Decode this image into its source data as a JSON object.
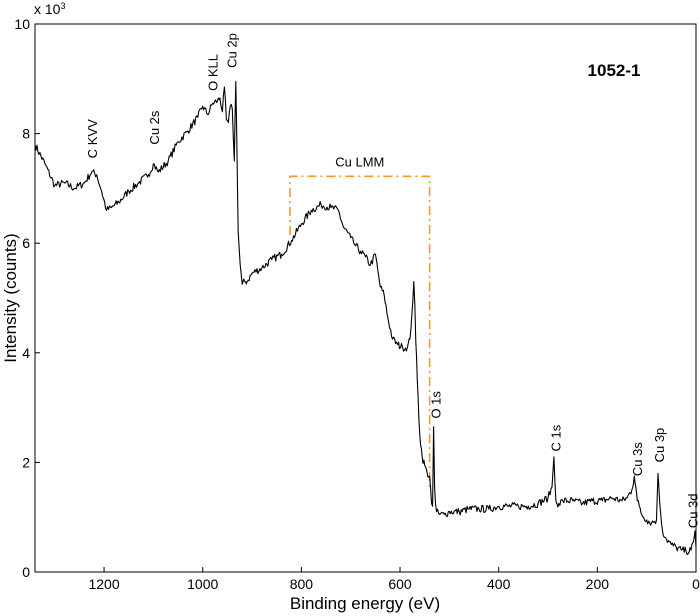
{
  "chart_data": {
    "type": "line",
    "title": "",
    "sample_label": "1052-1",
    "xlabel": "Binding energy (eV)",
    "ylabel": "Intensity (counts)",
    "y_multiplier_label": "x 10",
    "y_multiplier_exp": "3",
    "x_reversed": true,
    "xlim": [
      1340,
      0
    ],
    "ylim": [
      0,
      10
    ],
    "x_ticks": [
      1200,
      1000,
      800,
      600,
      400,
      200,
      0
    ],
    "y_ticks": [
      0,
      2,
      4,
      6,
      8,
      10
    ],
    "grid": false,
    "series": [
      {
        "color": "#000000",
        "x": [
          1340,
          1320,
          1300,
          1280,
          1260,
          1240,
          1225,
          1215,
          1205,
          1195,
          1185,
          1170,
          1150,
          1130,
          1110,
          1100,
          1090,
          1070,
          1050,
          1030,
          1010,
          1000,
          990,
          980,
          970,
          965,
          960,
          956,
          952,
          948,
          944,
          940,
          936,
          933,
          931,
          928,
          924,
          920,
          915,
          910,
          900,
          880,
          860,
          840,
          820,
          800,
          780,
          760,
          740,
          725,
          715,
          700,
          690,
          680,
          670,
          660,
          650,
          645,
          640,
          632,
          625,
          615,
          605,
          595,
          585,
          580,
          576,
          572,
          570,
          568,
          565,
          560,
          555,
          550,
          545,
          540,
          536,
          534,
          532,
          530,
          528,
          526,
          520,
          510,
          500,
          480,
          460,
          440,
          420,
          400,
          380,
          360,
          340,
          320,
          300,
          292,
          288,
          286,
          284,
          282,
          278,
          270,
          250,
          230,
          210,
          190,
          170,
          150,
          140,
          130,
          125,
          122,
          119,
          115,
          110,
          100,
          90,
          80,
          77,
          75,
          72,
          68,
          60,
          50,
          40,
          30,
          20,
          10,
          5,
          2,
          0
        ],
        "y": [
          7.8,
          7.45,
          7.05,
          7.1,
          7.0,
          7.1,
          7.3,
          7.25,
          6.95,
          6.6,
          6.65,
          6.75,
          6.95,
          7.1,
          7.25,
          7.45,
          7.3,
          7.5,
          7.85,
          8.05,
          8.3,
          8.5,
          8.35,
          8.55,
          8.6,
          8.65,
          8.4,
          8.85,
          8.25,
          8.2,
          8.5,
          8.45,
          7.5,
          8.95,
          7.9,
          6.2,
          5.6,
          5.25,
          5.3,
          5.3,
          5.45,
          5.55,
          5.7,
          5.8,
          6.05,
          6.35,
          6.6,
          6.7,
          6.65,
          6.6,
          6.3,
          6.1,
          5.95,
          5.85,
          5.75,
          5.6,
          5.8,
          5.5,
          5.2,
          5.05,
          4.65,
          4.25,
          4.15,
          4.1,
          4.1,
          4.25,
          4.7,
          5.3,
          4.9,
          4.2,
          3.5,
          2.5,
          2.1,
          1.95,
          1.8,
          1.75,
          1.25,
          1.2,
          2.65,
          1.55,
          1.25,
          1.1,
          1.05,
          1.05,
          1.1,
          1.1,
          1.15,
          1.15,
          1.15,
          1.2,
          1.2,
          1.2,
          1.2,
          1.25,
          1.35,
          1.55,
          2.1,
          1.65,
          1.3,
          1.25,
          1.25,
          1.3,
          1.3,
          1.25,
          1.3,
          1.3,
          1.35,
          1.3,
          1.35,
          1.5,
          1.75,
          1.55,
          1.3,
          1.2,
          1.05,
          0.95,
          0.9,
          0.95,
          1.8,
          1.5,
          1.1,
          0.75,
          0.6,
          0.5,
          0.45,
          0.4,
          0.38,
          0.4,
          0.55,
          0.75,
          0.45
        ]
      }
    ],
    "peak_annotations": [
      {
        "label": "C KVV",
        "x": 1222,
        "y": 7.55
      },
      {
        "label": "Cu 2s",
        "x": 1097,
        "y": 7.8
      },
      {
        "label": "O KLL",
        "x": 978,
        "y": 8.78
      },
      {
        "label": "Cu 2p",
        "x": 940,
        "y": 9.2
      },
      {
        "label": "O 1s",
        "x": 526,
        "y": 2.8
      },
      {
        "label": "C 1s",
        "x": 283,
        "y": 2.2
      },
      {
        "label": "Cu 3s",
        "x": 118,
        "y": 1.75
      },
      {
        "label": "Cu 3p",
        "x": 73,
        "y": 2.0
      },
      {
        "label": "Cu 3d",
        "x": 5,
        "y": 0.8
      }
    ],
    "bracket": {
      "label": "Cu LMM",
      "color": "#f59a23",
      "x_start": 823,
      "x_end": 540,
      "y_top": 7.22,
      "y_left_bottom": 6.15,
      "y_right_bottom": 1.55
    }
  }
}
